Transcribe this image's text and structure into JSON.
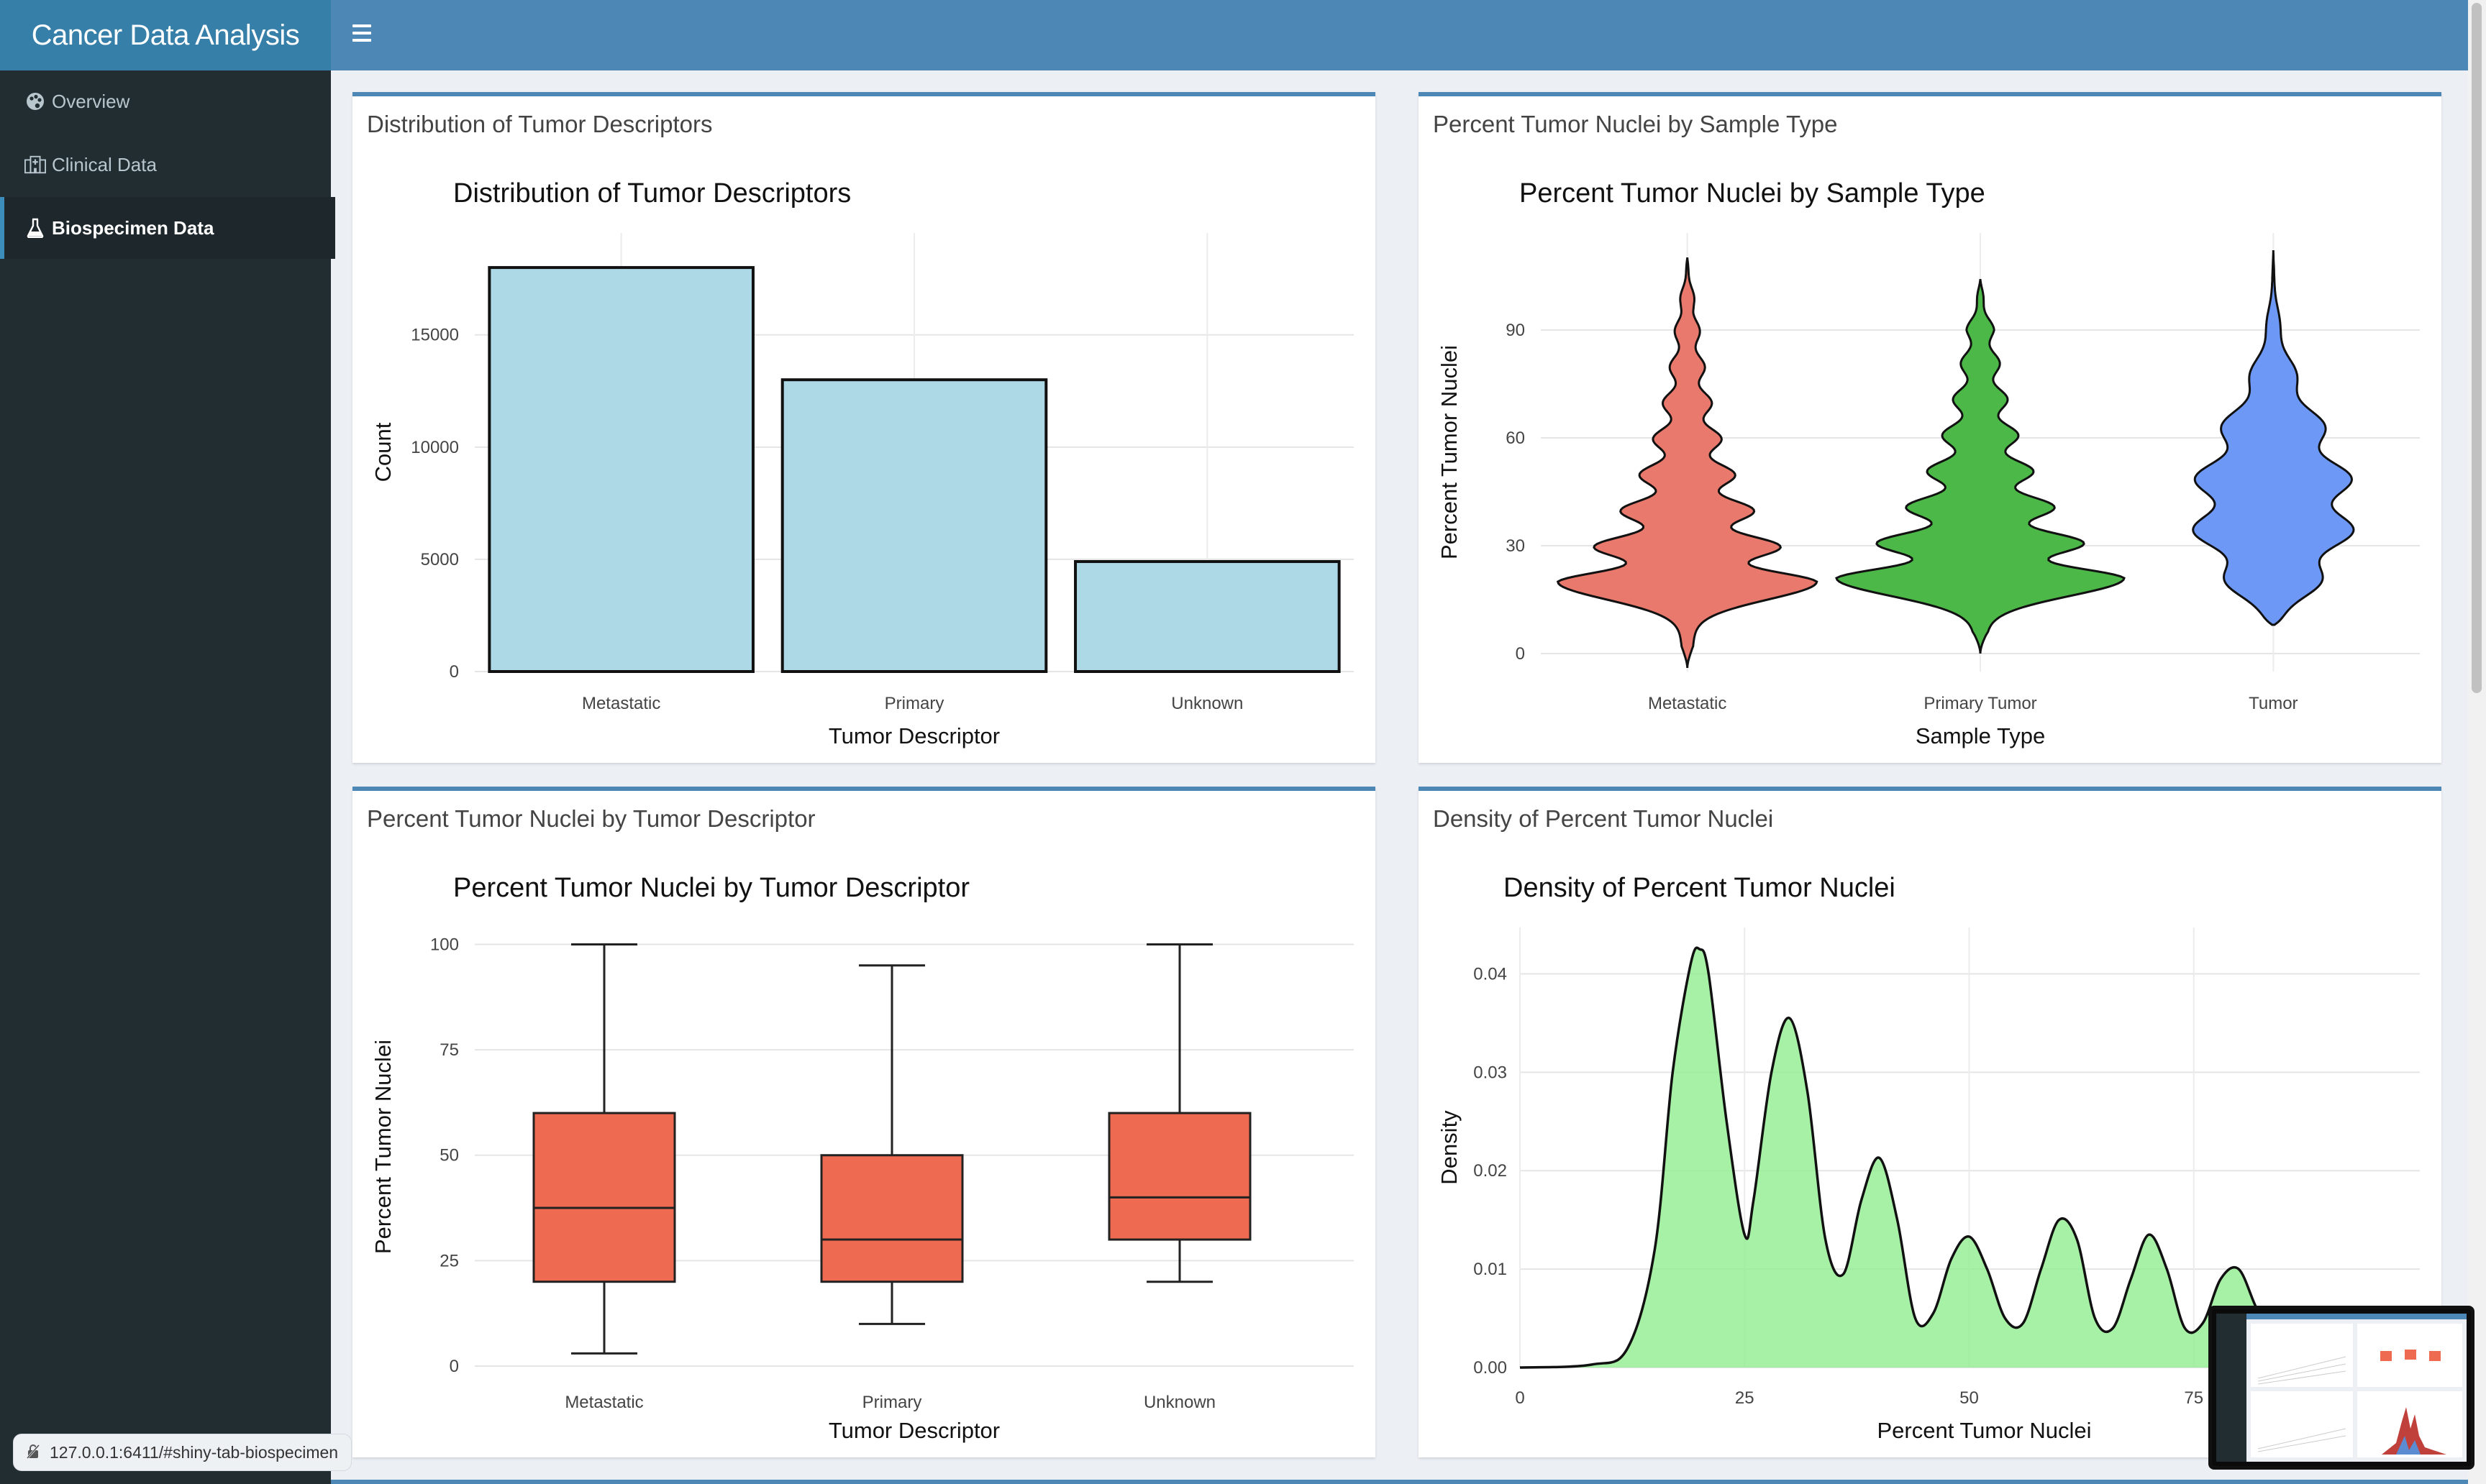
{
  "app": {
    "title": "Cancer Data Analysis"
  },
  "sidebar": {
    "items": [
      {
        "label": "Overview",
        "icon": "palette-icon",
        "active": false
      },
      {
        "label": "Clinical Data",
        "icon": "hospital-icon",
        "active": false
      },
      {
        "label": "Biospecimen Data",
        "icon": "flask-icon",
        "active": true
      }
    ]
  },
  "status_url": "127.0.0.1:6411/#shiny-tab-biospecimen",
  "colors": {
    "header": "#4d87b6",
    "logo_bg": "#367fa9",
    "sidebar": "#222d32",
    "active_item": "#1e282c",
    "bar_fill": "#add8e6",
    "box_fill": "#ee6a50",
    "density_fill": "#90ee90"
  },
  "panels": {
    "p1": {
      "box_title": "Distribution of Tumor Descriptors"
    },
    "p2": {
      "box_title": "Percent Tumor Nuclei by Sample Type"
    },
    "p3": {
      "box_title": "Percent Tumor Nuclei by Tumor Descriptor"
    },
    "p4": {
      "box_title": "Density of Percent Tumor Nuclei"
    }
  },
  "chart_data": [
    {
      "type": "bar",
      "title": "Distribution of Tumor Descriptors",
      "xlabel": "Tumor Descriptor",
      "ylabel": "Count",
      "categories": [
        "Metastatic",
        "Primary",
        "Unknown"
      ],
      "values": [
        18000,
        13000,
        4900
      ],
      "ylim": [
        0,
        18900
      ],
      "yticks": [
        0,
        5000,
        10000,
        15000
      ],
      "ytick_labels": [
        "0",
        "5000",
        "10000",
        "15000"
      ],
      "grid": true
    },
    {
      "type": "violin",
      "title": "Percent Tumor Nuclei by Sample Type",
      "xlabel": "Sample Type",
      "ylabel": "Percent Tumor Nuclei",
      "categories": [
        "Metastatic",
        "Primary Tumor",
        "Tumor"
      ],
      "colors": [
        "#e8796c",
        "#4cb848",
        "#6e98f6"
      ],
      "ranges": [
        [
          -4,
          110
        ],
        [
          0,
          104
        ],
        [
          8,
          112
        ]
      ],
      "ylim": [
        -5,
        113
      ],
      "yticks": [
        0,
        30,
        60,
        90
      ],
      "ytick_labels": [
        "0",
        "30",
        "60",
        "90"
      ],
      "grid": true
    },
    {
      "type": "box",
      "title": "Percent Tumor Nuclei by Tumor Descriptor",
      "xlabel": "Tumor Descriptor",
      "ylabel": "Percent Tumor Nuclei",
      "categories": [
        "Metastatic",
        "Primary",
        "Unknown"
      ],
      "boxes": [
        {
          "min": 3,
          "q1": 20,
          "median": 37.5,
          "q3": 60,
          "max": 100
        },
        {
          "min": 10,
          "q1": 20,
          "median": 30,
          "q3": 50,
          "max": 95
        },
        {
          "min": 20,
          "q1": 30,
          "median": 40,
          "q3": 60,
          "max": 100
        }
      ],
      "ylim": [
        0,
        104
      ],
      "yticks": [
        0,
        25,
        50,
        75,
        100
      ],
      "ytick_labels": [
        "0",
        "25",
        "50",
        "75",
        "100"
      ],
      "grid": true
    },
    {
      "type": "area",
      "title": "Density of Percent Tumor Nuclei",
      "xlabel": "Percent Tumor Nuclei",
      "ylabel": "Density",
      "x": [
        0,
        8,
        12,
        15,
        17,
        19,
        20,
        21,
        23,
        25,
        26,
        28,
        30,
        32,
        34,
        36,
        38,
        40,
        42,
        44,
        46,
        48,
        50,
        52,
        54,
        56,
        58,
        60,
        62,
        64,
        66,
        68,
        70,
        72,
        74,
        76,
        78,
        80,
        82,
        84
      ],
      "y": [
        0,
        0.0003,
        0.002,
        0.012,
        0.03,
        0.041,
        0.0425,
        0.04,
        0.025,
        0.0135,
        0.017,
        0.03,
        0.0355,
        0.028,
        0.013,
        0.0095,
        0.017,
        0.0213,
        0.015,
        0.005,
        0.0055,
        0.011,
        0.0133,
        0.01,
        0.005,
        0.0045,
        0.01,
        0.015,
        0.013,
        0.005,
        0.004,
        0.009,
        0.0135,
        0.01,
        0.004,
        0.0045,
        0.009,
        0.01,
        0.006,
        0.003
      ],
      "xlim": [
        0,
        100
      ],
      "ylim": [
        0,
        0.045
      ],
      "xticks": [
        0,
        25,
        50,
        75
      ],
      "xtick_labels": [
        "0",
        "25",
        "50",
        "75"
      ],
      "yticks": [
        0,
        0.01,
        0.02,
        0.03,
        0.04
      ],
      "ytick_labels": [
        "0.00",
        "0.01",
        "0.02",
        "0.03",
        "0.04"
      ],
      "grid": true
    }
  ]
}
